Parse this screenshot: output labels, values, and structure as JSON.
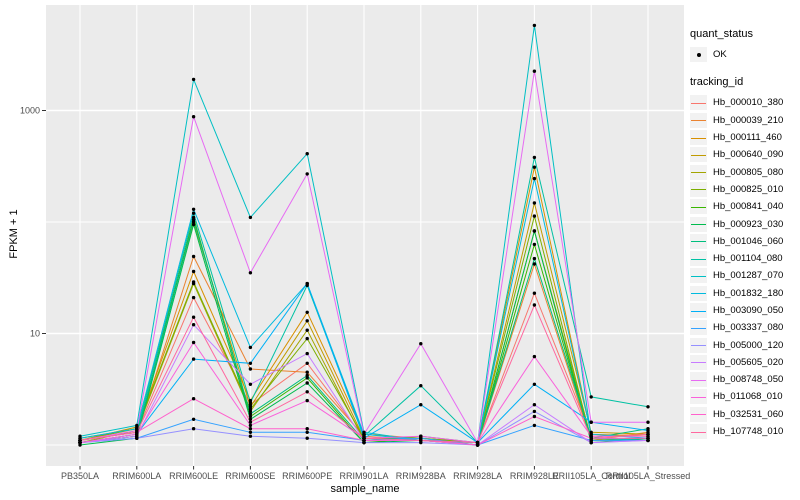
{
  "chart_data": {
    "type": "line",
    "title": "",
    "xlabel": "sample_name",
    "ylabel": "FPKM + 1",
    "y_scale": "log10",
    "ylim": [
      1,
      8800
    ],
    "y_major_ticks": [
      10,
      1000
    ],
    "y_major_tick_labels": [
      "10",
      "1000"
    ],
    "y_minor_gridlines": [
      1,
      100
    ],
    "grid": true,
    "legend_position": "right",
    "panel_bg": "#EBEBEB",
    "grid_color": "#FFFFFF",
    "point_color": "#000000",
    "tick_label_color": "#4D4D4D",
    "categories": [
      "PB350LA",
      "RRIM600LA",
      "RRIM600LE",
      "RRIM600SE",
      "RRIM600PE",
      "RRIM901LA",
      "RRIM928BA",
      "RRIM928LA",
      "RRIM928LE",
      "RRII105LA_Control",
      "RRII105LA_Stressed"
    ],
    "series": [
      {
        "name": "Hb_000010_380",
        "color": "#F8766D",
        "values": [
          1.1,
          1.3,
          21,
          2.3,
          5.4,
          1.15,
          1.15,
          1.05,
          23,
          1.2,
          1.25
        ]
      },
      {
        "name": "Hb_000039_210",
        "color": "#EA8331",
        "values": [
          1.05,
          1.25,
          49,
          4.8,
          4.5,
          1.2,
          1.1,
          1.05,
          42,
          1.1,
          1.3
        ]
      },
      {
        "name": "Hb_000111_460",
        "color": "#D89000",
        "values": [
          1.15,
          1.4,
          36,
          2.5,
          15.5,
          1.25,
          1.15,
          1.05,
          310,
          1.25,
          1.2
        ]
      },
      {
        "name": "Hb_000640_090",
        "color": "#C09B00",
        "values": [
          1.1,
          1.45,
          100,
          2.2,
          13,
          1.15,
          1.1,
          1.05,
          148,
          1.3,
          1.25
        ]
      },
      {
        "name": "Hb_000805_080",
        "color": "#A3A500",
        "values": [
          1.05,
          1.35,
          28,
          2.0,
          10.7,
          1.1,
          1.1,
          1.0,
          83,
          1.15,
          1.1
        ]
      },
      {
        "name": "Hb_000825_010",
        "color": "#7CAE00",
        "values": [
          1.1,
          1.4,
          29,
          2.1,
          9.0,
          1.15,
          1.15,
          1.05,
          113,
          1.1,
          1.15
        ]
      },
      {
        "name": "Hb_000841_040",
        "color": "#39B600",
        "values": [
          1.05,
          1.2,
          110,
          1.8,
          4.0,
          1.05,
          1.15,
          1.0,
          63,
          1.1,
          1.1
        ]
      },
      {
        "name": "Hb_000923_030",
        "color": "#00BB4E",
        "values": [
          1.0,
          1.15,
          95,
          1.7,
          3.6,
          1.05,
          1.1,
          1.0,
          83,
          1.05,
          1.15
        ]
      },
      {
        "name": "Hb_001046_060",
        "color": "#00BF7D",
        "values": [
          1.05,
          1.2,
          105,
          1.9,
          4.2,
          1.1,
          1.2,
          1.05,
          47,
          1.15,
          1.4
        ]
      },
      {
        "name": "Hb_001104_080",
        "color": "#00C1A3",
        "values": [
          1.1,
          1.3,
          120,
          2.4,
          27,
          1.2,
          3.4,
          1.05,
          380,
          2.7,
          2.2
        ]
      },
      {
        "name": "Hb_001287_070",
        "color": "#00BFC4",
        "values": [
          1.2,
          1.5,
          1900,
          110,
          410,
          1.3,
          1.1,
          1.05,
          5800,
          1.15,
          1.1
        ]
      },
      {
        "name": "Hb_001832_180",
        "color": "#00BADE",
        "values": [
          1.15,
          1.4,
          130,
          7.5,
          28,
          1.25,
          1.1,
          1.05,
          245,
          1.25,
          1.15
        ]
      },
      {
        "name": "Hb_003090_050",
        "color": "#00B0F6",
        "values": [
          1.05,
          1.25,
          5.9,
          5.4,
          28,
          1.15,
          2.3,
          1.05,
          3.5,
          1.6,
          1.35
        ]
      },
      {
        "name": "Hb_003337_080",
        "color": "#35A2FF",
        "values": [
          1.05,
          1.15,
          1.7,
          1.3,
          1.3,
          1.1,
          1.15,
          1.0,
          1.5,
          1.1,
          1.1
        ]
      },
      {
        "name": "Hb_005000_120",
        "color": "#9590FF",
        "values": [
          1.05,
          1.15,
          1.4,
          1.2,
          1.15,
          1.05,
          1.05,
          1.0,
          2.0,
          1.05,
          1.1
        ]
      },
      {
        "name": "Hb_005605_020",
        "color": "#C77CFF",
        "values": [
          1.05,
          1.2,
          12,
          3.5,
          6.6,
          1.1,
          1.1,
          1.0,
          2.3,
          1.05,
          1.1
        ]
      },
      {
        "name": "Hb_008748_050",
        "color": "#E76BF3",
        "values": [
          1.1,
          1.35,
          880,
          35,
          270,
          1.25,
          8.1,
          1.05,
          2250,
          1.6,
          1.6
        ]
      },
      {
        "name": "Hb_011068_010",
        "color": "#FA62DB",
        "values": [
          1.05,
          1.25,
          8.3,
          1.5,
          2.5,
          1.15,
          1.2,
          1.05,
          6.2,
          1.2,
          1.2
        ]
      },
      {
        "name": "Hb_032531_060",
        "color": "#FF61CC",
        "values": [
          1.1,
          1.3,
          2.6,
          1.4,
          1.4,
          1.1,
          1.1,
          1.0,
          1.8,
          1.15,
          1.15
        ]
      },
      {
        "name": "Hb_107748_010",
        "color": "#FF689F",
        "values": [
          1.1,
          1.3,
          14,
          1.6,
          3.0,
          1.15,
          1.1,
          1.05,
          18,
          1.15,
          1.25
        ]
      }
    ]
  },
  "legend": {
    "quant_status_title": "quant_status",
    "ok_label": "OK",
    "tracking_id_title": "tracking_id"
  }
}
